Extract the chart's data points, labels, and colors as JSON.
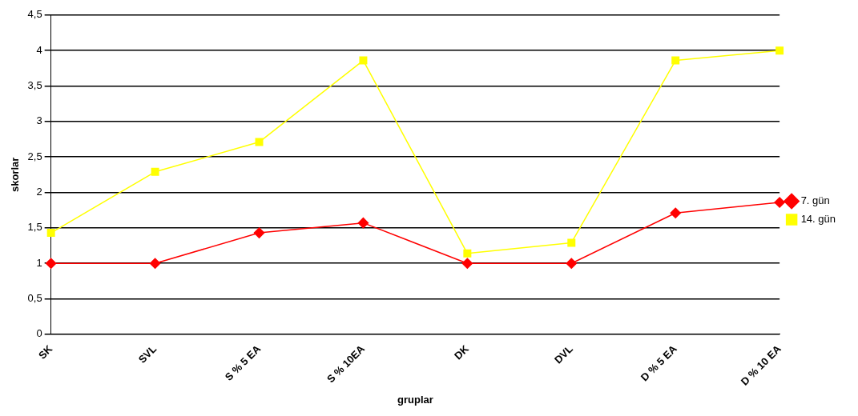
{
  "chart_data": {
    "type": "line",
    "xlabel": "gruplar",
    "ylabel": "skorlar",
    "categories": [
      "SK",
      "SVL",
      "S % 5 EA",
      "S % 10EA",
      "DK",
      "DVL",
      "D % 5 EA",
      "D % 10 EA"
    ],
    "series": [
      {
        "name": "7. gün",
        "color": "#ff0000",
        "marker": "diamond",
        "values": [
          1,
          1,
          1.43,
          1.57,
          1,
          1,
          1.71,
          1.86
        ]
      },
      {
        "name": "14. gün",
        "color": "#ffff00",
        "marker": "square",
        "values": [
          1.43,
          2.29,
          2.71,
          3.86,
          1.14,
          1.29,
          3.86,
          4
        ]
      }
    ],
    "ylim": [
      0,
      4.5
    ],
    "yticks": [
      0,
      {
        "value": 0.5,
        "label": "0,5"
      },
      1,
      {
        "value": 1.5,
        "label": "1,5"
      },
      2,
      {
        "value": 2.5,
        "label": "2,5"
      },
      3,
      {
        "value": 3.5,
        "label": "3,5"
      },
      4,
      {
        "value": 4.5,
        "label": "4,5"
      }
    ],
    "grid": "y",
    "legend": "right",
    "line_style": "solid"
  }
}
